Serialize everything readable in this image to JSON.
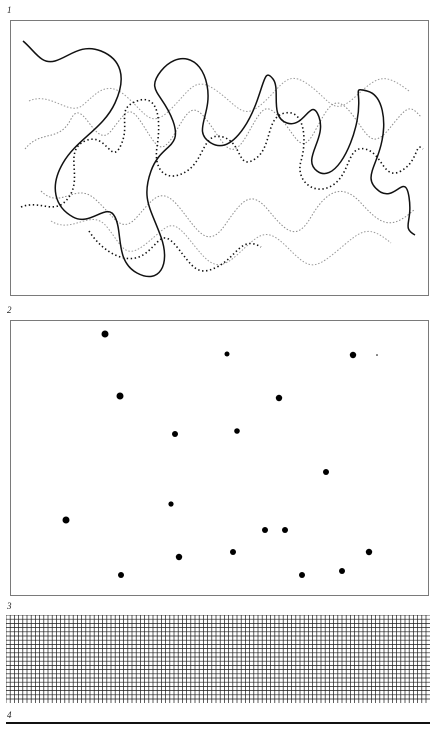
{
  "figure_labels": {
    "fig1": "1",
    "fig2": "2",
    "fig3": "3",
    "fig4": "4"
  },
  "panel1": {
    "description_free": true,
    "line_styles": [
      "solid",
      "dotted",
      "dotted-light"
    ]
  },
  "panel2": {
    "dot_color": "#000000",
    "dot_count": 21
  },
  "panel3": {
    "grid_color": "#1a1a1a"
  },
  "panel4": {
    "rule_color": "#111111"
  }
}
